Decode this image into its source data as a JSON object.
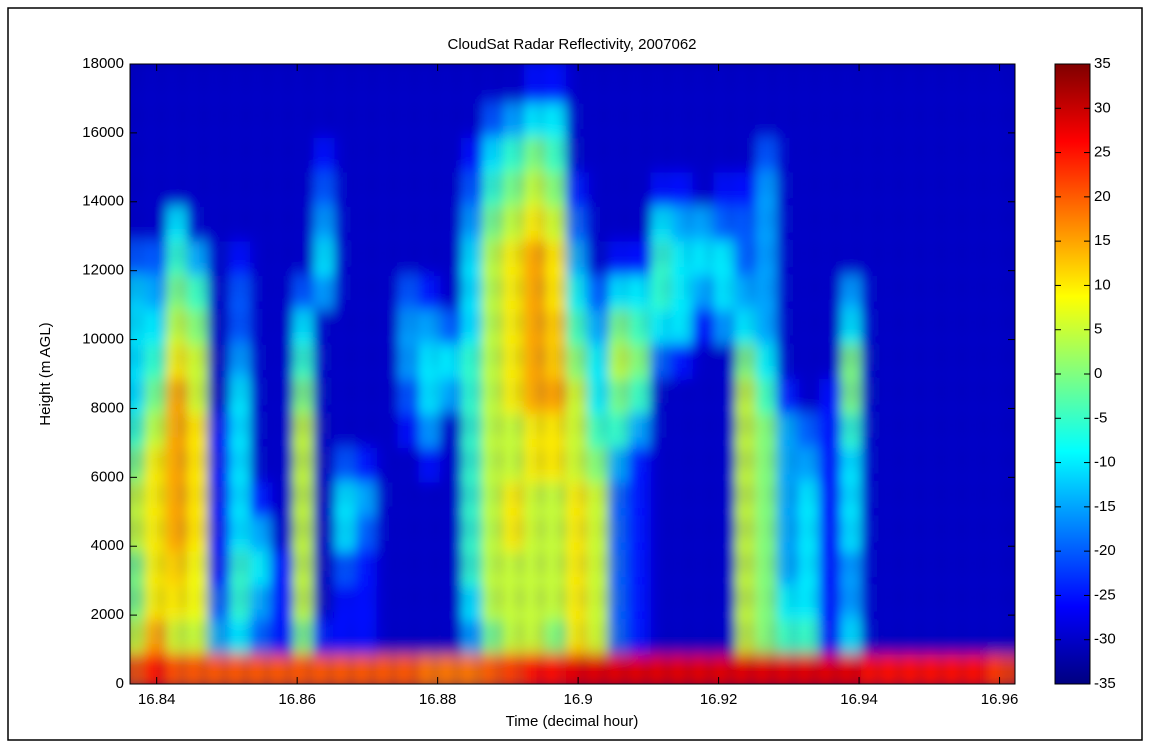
{
  "chart_data": {
    "type": "heatmap",
    "title": "CloudSat Radar Reflectivity, 2007062",
    "x_label": "Time (decimal hour)",
    "y_label": "Height (m AGL)",
    "colormap": "jet",
    "xlim": [
      16.8362,
      16.9622
    ],
    "ylim": [
      0,
      18000
    ],
    "clim": [
      -35,
      35
    ],
    "xticks": [
      16.84,
      16.86,
      16.88,
      16.9,
      16.92,
      16.94,
      16.96
    ],
    "yticks": [
      0,
      2000,
      4000,
      6000,
      8000,
      10000,
      12000,
      14000,
      16000,
      18000
    ],
    "cticks": [
      35,
      30,
      25,
      20,
      15,
      10,
      5,
      0,
      -5,
      -10,
      -15,
      -20,
      -25,
      -30,
      -35
    ],
    "x": [
      16.8377,
      16.8407,
      16.8437,
      16.8467,
      16.8497,
      16.8527,
      16.8557,
      16.8587,
      16.8617,
      16.8647,
      16.8677,
      16.8707,
      16.8737,
      16.8767,
      16.8797,
      16.8827,
      16.8857,
      16.8887,
      16.8917,
      16.8947,
      16.8977,
      16.9007,
      16.9037,
      16.9067,
      16.9097,
      16.9127,
      16.9157,
      16.9187,
      16.9217,
      16.9247,
      16.9277,
      16.9307,
      16.9337,
      16.9367,
      16.9397,
      16.9427,
      16.9457,
      16.9487,
      16.9517,
      16.9547,
      16.9577,
      16.9607
    ],
    "y": [
      500,
      1500,
      2500,
      3500,
      4500,
      5500,
      6500,
      7500,
      8500,
      9500,
      10500,
      11500,
      12500,
      13500,
      14500,
      15500,
      16500,
      17500
    ],
    "values": [
      [
        20,
        5,
        0,
        0,
        5,
        5,
        0,
        -5,
        -10,
        -10,
        -10,
        -12,
        -20,
        -30,
        -30,
        -30,
        -30,
        -30
      ],
      [
        25,
        15,
        10,
        10,
        10,
        10,
        10,
        5,
        0,
        -5,
        -10,
        -15,
        -20,
        -30,
        -30,
        -30,
        -30,
        -30
      ],
      [
        20,
        5,
        10,
        12,
        15,
        15,
        15,
        15,
        15,
        10,
        5,
        0,
        -5,
        -10,
        -30,
        -30,
        -30,
        -30
      ],
      [
        20,
        5,
        8,
        8,
        10,
        10,
        10,
        10,
        5,
        5,
        0,
        -5,
        -15,
        -30,
        -30,
        -30,
        -30,
        -30
      ],
      [
        20,
        -15,
        -20,
        -25,
        -25,
        -25,
        -25,
        -25,
        -30,
        -30,
        -30,
        -30,
        -30,
        -30,
        -30,
        -30,
        -30,
        -30
      ],
      [
        20,
        -10,
        -5,
        -5,
        -10,
        -10,
        -10,
        -10,
        -10,
        -15,
        -20,
        -20,
        -25,
        -30,
        -30,
        -30,
        -30,
        -30
      ],
      [
        20,
        -20,
        -15,
        -10,
        -15,
        -25,
        -30,
        -30,
        -30,
        -30,
        -30,
        -30,
        -30,
        -30,
        -30,
        -30,
        -30,
        -30
      ],
      [
        20,
        -25,
        -25,
        -25,
        -30,
        -30,
        -30,
        -30,
        -30,
        -30,
        -30,
        -30,
        -30,
        -30,
        -30,
        -30,
        -30,
        -30
      ],
      [
        20,
        0,
        5,
        5,
        5,
        5,
        5,
        5,
        0,
        -5,
        -10,
        -20,
        -30,
        -30,
        -30,
        -30,
        -30,
        -30
      ],
      [
        20,
        -25,
        -30,
        -30,
        -30,
        -30,
        -30,
        -30,
        -30,
        -30,
        -30,
        -15,
        -10,
        -15,
        -20,
        -25,
        -30,
        -30
      ],
      [
        20,
        -25,
        -25,
        -20,
        -10,
        -10,
        -20,
        -30,
        -30,
        -30,
        -30,
        -30,
        -30,
        -30,
        -30,
        -30,
        -30,
        -30
      ],
      [
        20,
        -25,
        -25,
        -25,
        -20,
        -15,
        -25,
        -30,
        -30,
        -30,
        -30,
        -30,
        -30,
        -30,
        -30,
        -30,
        -30,
        -30
      ],
      [
        20,
        -30,
        -30,
        -30,
        -30,
        -30,
        -30,
        -30,
        -30,
        -30,
        -30,
        -30,
        -30,
        -30,
        -30,
        -30,
        -30,
        -30
      ],
      [
        20,
        -30,
        -30,
        -30,
        -30,
        -30,
        -30,
        -25,
        -20,
        -15,
        -15,
        -20,
        -30,
        -30,
        -30,
        -30,
        -30,
        -30
      ],
      [
        18,
        -30,
        -30,
        -30,
        -30,
        -30,
        -25,
        -15,
        -10,
        -10,
        -15,
        -25,
        -30,
        -30,
        -30,
        -30,
        -30,
        -30
      ],
      [
        18,
        -30,
        -30,
        -30,
        -30,
        -30,
        -30,
        -30,
        -15,
        -10,
        -20,
        -30,
        -30,
        -30,
        -30,
        -30,
        -30,
        -30
      ],
      [
        18,
        -15,
        -10,
        -5,
        -5,
        -5,
        -5,
        -5,
        -5,
        -5,
        -10,
        -10,
        -10,
        -15,
        -20,
        -25,
        -30,
        -30
      ],
      [
        20,
        0,
        5,
        5,
        5,
        5,
        5,
        5,
        5,
        5,
        5,
        5,
        5,
        0,
        -5,
        -10,
        -20,
        -30
      ],
      [
        22,
        5,
        5,
        5,
        10,
        10,
        5,
        5,
        10,
        10,
        10,
        10,
        10,
        5,
        0,
        -5,
        -15,
        -30
      ],
      [
        25,
        5,
        5,
        5,
        5,
        5,
        10,
        10,
        15,
        15,
        15,
        15,
        15,
        10,
        5,
        0,
        -10,
        -25
      ],
      [
        25,
        0,
        5,
        5,
        5,
        5,
        10,
        10,
        15,
        12,
        12,
        10,
        10,
        5,
        0,
        -5,
        -10,
        -25
      ],
      [
        28,
        10,
        10,
        10,
        10,
        10,
        5,
        5,
        5,
        0,
        -5,
        -10,
        -15,
        -20,
        -25,
        -30,
        -30,
        -30
      ],
      [
        28,
        5,
        5,
        5,
        5,
        5,
        0,
        -5,
        -10,
        -10,
        -15,
        -20,
        -30,
        -30,
        -30,
        -30,
        -30,
        -30
      ],
      [
        28,
        -20,
        -20,
        -20,
        -20,
        -20,
        -15,
        -5,
        0,
        5,
        0,
        -10,
        -25,
        -30,
        -30,
        -30,
        -30,
        -30
      ],
      [
        28,
        -25,
        -25,
        -25,
        -25,
        -25,
        -25,
        -15,
        -5,
        0,
        -5,
        -10,
        -25,
        -30,
        -30,
        -30,
        -30,
        -30
      ],
      [
        28,
        -30,
        -30,
        -30,
        -30,
        -30,
        -30,
        -30,
        -30,
        -20,
        -10,
        -5,
        -5,
        -10,
        -25,
        -30,
        -30,
        -30
      ],
      [
        28,
        -30,
        -30,
        -30,
        -30,
        -30,
        -30,
        -30,
        -30,
        -25,
        -10,
        -10,
        -10,
        -15,
        -25,
        -30,
        -30,
        -30
      ],
      [
        28,
        -30,
        -30,
        -30,
        -30,
        -30,
        -30,
        -30,
        -30,
        -30,
        -25,
        -15,
        -10,
        -15,
        -30,
        -30,
        -30,
        -30
      ],
      [
        28,
        -30,
        -30,
        -30,
        -30,
        -30,
        -30,
        -30,
        -30,
        -30,
        -15,
        -10,
        -10,
        -20,
        -25,
        -30,
        -30,
        -30
      ],
      [
        28,
        5,
        5,
        5,
        5,
        5,
        5,
        5,
        5,
        0,
        -10,
        -15,
        -20,
        -20,
        -25,
        -30,
        -30,
        -30
      ],
      [
        28,
        0,
        0,
        0,
        0,
        0,
        0,
        0,
        -5,
        -10,
        -15,
        -15,
        -15,
        -15,
        -15,
        -20,
        -30,
        -30
      ],
      [
        28,
        -5,
        -10,
        -15,
        -15,
        -15,
        -15,
        -15,
        -25,
        -30,
        -30,
        -30,
        -30,
        -30,
        -30,
        -30,
        -30,
        -30
      ],
      [
        28,
        -5,
        -10,
        -10,
        -10,
        -10,
        -15,
        -20,
        -30,
        -30,
        -30,
        -30,
        -30,
        -30,
        -30,
        -30,
        -30,
        -30
      ],
      [
        28,
        -25,
        -25,
        -25,
        -25,
        -25,
        -25,
        -25,
        -25,
        -30,
        -30,
        -30,
        -30,
        -30,
        -30,
        -30,
        -30,
        -30
      ],
      [
        28,
        -10,
        -15,
        -15,
        -10,
        -10,
        -10,
        -5,
        0,
        0,
        -10,
        -15,
        -30,
        -30,
        -30,
        -30,
        -30,
        -30
      ],
      [
        25,
        -30,
        -30,
        -30,
        -30,
        -30,
        -30,
        -30,
        -30,
        -30,
        -30,
        -30,
        -30,
        -30,
        -30,
        -30,
        -30,
        -30
      ],
      [
        25,
        -30,
        -30,
        -30,
        -30,
        -30,
        -30,
        -30,
        -30,
        -30,
        -30,
        -30,
        -30,
        -30,
        -30,
        -30,
        -30,
        -30
      ],
      [
        25,
        -30,
        -30,
        -30,
        -30,
        -30,
        -30,
        -30,
        -30,
        -30,
        -30,
        -30,
        -30,
        -30,
        -30,
        -30,
        -30,
        -30
      ],
      [
        25,
        -30,
        -30,
        -30,
        -30,
        -30,
        -30,
        -30,
        -30,
        -30,
        -30,
        -30,
        -30,
        -30,
        -30,
        -30,
        -30,
        -30
      ],
      [
        25,
        -30,
        -30,
        -30,
        -30,
        -30,
        -30,
        -30,
        -30,
        -30,
        -30,
        -30,
        -30,
        -30,
        -30,
        -30,
        -30,
        -30
      ],
      [
        25,
        -30,
        -30,
        -30,
        -30,
        -30,
        -30,
        -30,
        -30,
        -30,
        -30,
        -30,
        -30,
        -30,
        -30,
        -30,
        -30,
        -30
      ],
      [
        22,
        -30,
        -30,
        -30,
        -30,
        -30,
        -30,
        -30,
        -30,
        -30,
        -30,
        -30,
        -30,
        -30,
        -30,
        -30,
        -30,
        -30
      ]
    ]
  }
}
